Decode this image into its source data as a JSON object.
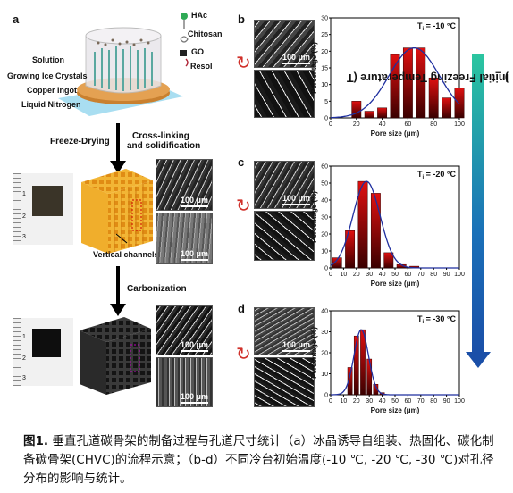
{
  "panel_a": {
    "letter": "a",
    "legend": {
      "hac": "HAc",
      "chitosan": "Chitosan",
      "go": "GO",
      "resol": "Resol"
    },
    "labels": {
      "solution": "Solution",
      "growing_ice": "Growing Ice Crystals",
      "copper": "Copper Ingot",
      "liquid_n2": "Liquid Nitrogen"
    },
    "steps": {
      "freeze_drying": "Freeze-Drying",
      "crosslink_1": "Cross-linking",
      "crosslink_2": "and solidification",
      "carbonization": "Carbonization"
    },
    "vertical_channels": "Vertical channels",
    "scale_bar": "100 μm",
    "ruler_ticks": [
      "1",
      "2",
      "3"
    ]
  },
  "charts": [
    {
      "letter": "b",
      "ti_label": "T",
      "ti_sub": "i",
      "ti_value": " = -10 °C",
      "scale_bar": "100 μm",
      "chart_data": {
        "type": "bar",
        "x": [
          10,
          20,
          30,
          40,
          50,
          60,
          70,
          80,
          90,
          100
        ],
        "values": [
          0,
          5,
          2,
          3,
          19,
          21,
          21,
          12,
          6,
          9
        ],
        "xlabel": "Pore size (μm)",
        "ylabel": "Percentage (%)",
        "xlim": [
          0,
          100
        ],
        "ylim": [
          0,
          30
        ],
        "xticks": [
          0,
          20,
          40,
          60,
          80,
          100
        ],
        "yticks": [
          0,
          5,
          10,
          15,
          20,
          25,
          30
        ],
        "fit": "gaussian"
      }
    },
    {
      "letter": "c",
      "ti_label": "T",
      "ti_sub": "i",
      "ti_value": " = -20 °C",
      "scale_bar": "100 μm",
      "chart_data": {
        "type": "bar",
        "x": [
          5,
          15,
          25,
          35,
          45,
          55,
          65
        ],
        "values": [
          6,
          22,
          51,
          44,
          9,
          2,
          1
        ],
        "xlabel": "Pore size (μm)",
        "ylabel": "Percentage (%)",
        "xlim": [
          0,
          100
        ],
        "ylim": [
          0,
          60
        ],
        "xticks": [
          0,
          10,
          20,
          30,
          40,
          50,
          60,
          70,
          80,
          90,
          100
        ],
        "yticks": [
          0,
          10,
          20,
          30,
          40,
          50,
          60
        ],
        "fit": "gaussian"
      }
    },
    {
      "letter": "d",
      "ti_label": "T",
      "ti_sub": "i",
      "ti_value": " = -30 °C",
      "scale_bar": "100 μm",
      "chart_data": {
        "type": "bar",
        "x": [
          15,
          20,
          25,
          30,
          35,
          40
        ],
        "values": [
          13,
          28,
          31,
          17,
          5,
          1
        ],
        "xlabel": "Pore size (μm)",
        "ylabel": "Percentage (%)",
        "xlim": [
          0,
          100
        ],
        "ylim": [
          0,
          40
        ],
        "xticks": [
          0,
          10,
          20,
          30,
          40,
          50,
          60,
          70,
          80,
          90,
          100
        ],
        "yticks": [
          0,
          10,
          20,
          30,
          40
        ],
        "fit": "gaussian"
      }
    }
  ],
  "side_label": "Initial Freezing Temperature (T",
  "side_label_sub": "i",
  "side_label_end": ")",
  "caption": {
    "figure_num": "图1.",
    "text": " 垂直孔道碳骨架的制备过程与孔道尺寸统计（a）冰晶诱导自组装、热固化、碳化制备碳骨架(CHVC)的流程示意；（b-d）不同冷台初始温度(-10 ℃, -20 ℃, -30 ℃)对孔径分布的影响与统计。"
  },
  "colors": {
    "bar_top": "#e01010",
    "bar_bottom": "#3a0000",
    "fit": "#1f2f9f",
    "sponge": "#f2b535",
    "carbon": "#2a2a2a",
    "plate": "#e4a152",
    "liquid": "#9ad8ee"
  }
}
